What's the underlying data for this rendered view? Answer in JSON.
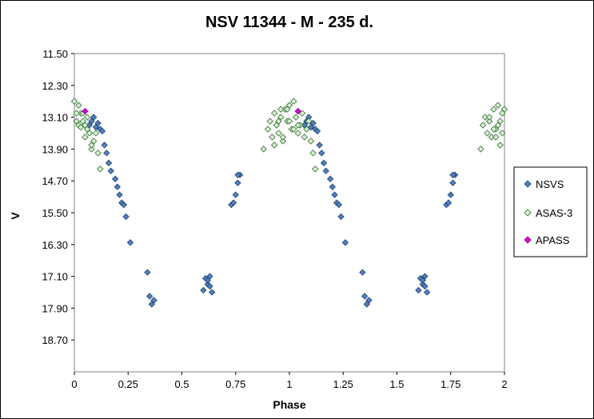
{
  "chart_data": {
    "type": "scatter",
    "title": "NSV 11344 - M - 235 d.",
    "xlabel": "Phase",
    "ylabel": "V",
    "xlim": [
      0,
      2
    ],
    "ylim": [
      11.5,
      19.5
    ],
    "y_inverted": true,
    "x_ticks": [
      "0",
      "0.25",
      "0.5",
      "0.75",
      "1",
      "1.25",
      "1.5",
      "1.75",
      "2"
    ],
    "x_tick_values": [
      0,
      0.25,
      0.5,
      0.75,
      1,
      1.25,
      1.5,
      1.75,
      2
    ],
    "y_ticks": [
      "11.50",
      "12.30",
      "13.10",
      "13.90",
      "14.70",
      "15.50",
      "16.30",
      "17.10",
      "17.90",
      "18.70"
    ],
    "y_tick_values": [
      11.5,
      12.3,
      13.1,
      13.9,
      14.7,
      15.5,
      16.3,
      17.1,
      17.9,
      18.7
    ],
    "grid": false,
    "legend_position": "right",
    "series": [
      {
        "name": "NSVS",
        "color": "#4f81bd",
        "edge": "#1f3f6f",
        "x": [
          0.07,
          0.08,
          0.09,
          0.1,
          0.11,
          0.12,
          0.13,
          0.14,
          0.15,
          0.16,
          0.17,
          0.19,
          0.2,
          0.21,
          0.22,
          0.23,
          0.24,
          0.26,
          0.34,
          0.35,
          0.36,
          0.37,
          0.6,
          0.61,
          0.62,
          0.63,
          0.64,
          0.63,
          0.62,
          0.73,
          0.74,
          0.75,
          0.76,
          0.77,
          0.76,
          1.07,
          1.08,
          1.09,
          1.1,
          1.11,
          1.12,
          1.13,
          1.14,
          1.15,
          1.16,
          1.17,
          1.19,
          1.2,
          1.21,
          1.22,
          1.23,
          1.24,
          1.26,
          1.34,
          1.35,
          1.36,
          1.37,
          1.6,
          1.61,
          1.62,
          1.63,
          1.64,
          1.63,
          1.62,
          1.73,
          1.74,
          1.75,
          1.76,
          1.77,
          1.76
        ],
        "y": [
          13.3,
          13.2,
          13.1,
          13.35,
          13.25,
          13.4,
          13.45,
          13.8,
          14.0,
          14.25,
          14.45,
          14.65,
          14.85,
          15.05,
          15.25,
          15.3,
          15.6,
          16.25,
          17.0,
          17.6,
          17.8,
          17.7,
          17.45,
          17.15,
          17.3,
          17.1,
          17.5,
          17.35,
          17.2,
          15.3,
          15.25,
          15.05,
          14.75,
          14.55,
          14.55,
          13.3,
          13.2,
          13.1,
          13.35,
          13.25,
          13.4,
          13.45,
          13.8,
          14.0,
          14.25,
          14.45,
          14.65,
          14.85,
          15.05,
          15.25,
          15.3,
          15.6,
          16.25,
          17.0,
          17.6,
          17.8,
          17.7,
          17.45,
          17.15,
          17.3,
          17.1,
          17.5,
          17.35,
          17.2,
          15.3,
          15.25,
          15.05,
          14.75,
          14.55,
          14.55
        ]
      },
      {
        "name": "ASAS-3",
        "color": "#d7f0d2",
        "edge": "#2e6b2e",
        "x": [
          0.0,
          0.01,
          0.02,
          0.03,
          0.04,
          0.05,
          0.05,
          0.06,
          0.07,
          0.08,
          0.09,
          0.1,
          0.11,
          0.12,
          0.02,
          0.03,
          0.04,
          0.06,
          0.08,
          0.01,
          0.9,
          0.91,
          0.92,
          0.93,
          0.94,
          0.95,
          0.96,
          0.97,
          0.98,
          0.99,
          1.0,
          1.01,
          1.02,
          1.03,
          1.04,
          1.05,
          1.06,
          1.07,
          1.08,
          1.09,
          1.1,
          1.11,
          1.12,
          0.93,
          0.95,
          0.96,
          0.97,
          0.99,
          1.0,
          1.02,
          1.04,
          0.88,
          1.9,
          1.91,
          1.92,
          1.93,
          1.94,
          1.95,
          1.96,
          1.97,
          1.98,
          1.99,
          2.0,
          1.95,
          1.96,
          1.97,
          1.98,
          1.99,
          1.93,
          1.89
        ],
        "y": [
          12.7,
          13.2,
          12.8,
          13.0,
          13.2,
          13.6,
          13.3,
          13.1,
          13.5,
          13.9,
          13.7,
          13.5,
          14.0,
          14.4,
          13.3,
          13.35,
          13.0,
          13.4,
          13.8,
          13.0,
          13.4,
          13.2,
          13.6,
          13.0,
          13.3,
          13.5,
          13.1,
          13.7,
          12.9,
          13.2,
          12.8,
          13.4,
          12.7,
          13.1,
          13.5,
          13.3,
          13.0,
          13.6,
          13.4,
          13.2,
          13.7,
          14.0,
          14.4,
          13.8,
          13.2,
          12.9,
          13.6,
          12.9,
          13.2,
          13.4,
          13.3,
          13.9,
          13.3,
          13.1,
          13.5,
          13.2,
          13.6,
          12.9,
          13.4,
          12.8,
          13.2,
          13.0,
          12.9,
          13.4,
          13.6,
          13.3,
          13.8,
          13.5,
          13.1,
          13.9
        ]
      },
      {
        "name": "APASS",
        "color": "#e000e0",
        "edge": "#7a007a",
        "x": [
          0.05,
          1.04
        ],
        "y": [
          12.95,
          12.95
        ]
      }
    ]
  }
}
